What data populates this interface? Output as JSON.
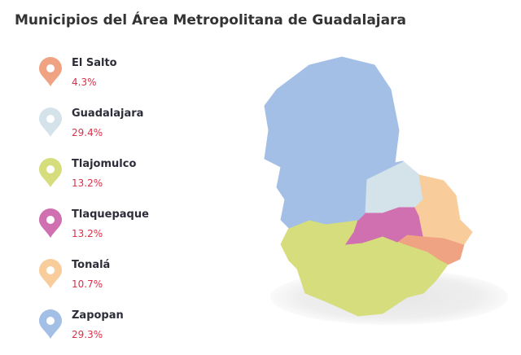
{
  "title": "Municipios del Área Metropolitana de Guadalajara",
  "items": [
    {
      "name": "El Salto",
      "share": "4.3%",
      "color": "#f0a383"
    },
    {
      "name": "Guadalajara",
      "share": "29.4%",
      "color": "#d4e2ea"
    },
    {
      "name": "Tlajomulco",
      "share": "13.2%",
      "color": "#d6dd7d"
    },
    {
      "name": "Tlaquepaque",
      "share": "13.2%",
      "color": "#d070b0"
    },
    {
      "name": "Tonalá",
      "share": "10.7%",
      "color": "#f9cd9b"
    },
    {
      "name": "Zapopan",
      "share": "29.3%",
      "color": "#a3bfe6"
    }
  ]
}
